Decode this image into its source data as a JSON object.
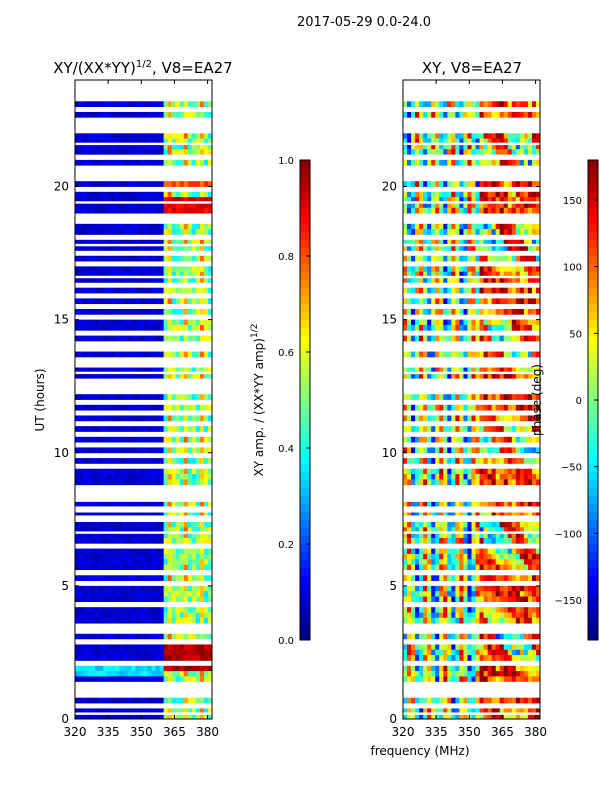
{
  "figure": {
    "suptitle": "2017-05-29 0.0-24.0",
    "shared_xlabel": "frequency (MHz)"
  },
  "chart_data": [
    {
      "type": "heatmap",
      "title": "XY/(XX*YY)",
      "title_exponent": "1/2",
      "title_suffix": ", V8=EA27",
      "xlabel": "",
      "ylabel": "UT (hours)",
      "xlim": [
        320,
        382
      ],
      "ylim": [
        0,
        24
      ],
      "xticks": [
        320,
        335,
        350,
        365,
        380
      ],
      "yticks": [
        0,
        5,
        10,
        15,
        20
      ],
      "colormap": "jet",
      "colorbar": {
        "label": "XY amp. / (XX*YY amp)",
        "label_exponent": "1/2",
        "range": [
          0.0,
          1.0
        ],
        "ticks": [
          "0.0",
          "0.2",
          "0.4",
          "0.6",
          "0.8",
          "1.0"
        ]
      },
      "features": {
        "low_band_value": 0.05,
        "high_band_start_mhz": 361,
        "high_band_value": 0.35,
        "bright_spots": [
          {
            "t_start": 1.7,
            "t_end": 2.8,
            "value": 0.9
          },
          {
            "t_start": 19.1,
            "t_end": 19.6,
            "value": 0.85
          },
          {
            "t_start": 20.1,
            "t_end": 20.6,
            "value": 0.75
          }
        ]
      }
    },
    {
      "type": "heatmap",
      "title": "XY, V8=EA27",
      "xlabel": "",
      "ylabel": "",
      "xlim": [
        320,
        382
      ],
      "ylim": [
        0,
        24
      ],
      "xticks": [
        320,
        335,
        350,
        365,
        380
      ],
      "yticks": [
        0,
        5,
        10,
        15,
        20
      ],
      "colormap": "jet",
      "colorbar": {
        "label": "phase (deg)",
        "range": [
          -180,
          180
        ],
        "ticks": [
          "150",
          "100",
          "50",
          "0",
          "−50",
          "−100",
          "−150"
        ]
      },
      "features": {
        "value_range": [
          -180,
          180
        ],
        "description": "noisy phase, strong red/yellow structure above 355 MHz"
      }
    }
  ],
  "data_gaps_hours": [
    0.2,
    0.45,
    0.9,
    1.1,
    1.35,
    2.05,
    2.95,
    3.3,
    3.45,
    4.35,
    5.1,
    5.45,
    5.55,
    6.5,
    7.0,
    7.5,
    7.6,
    7.8,
    7.9,
    8.2,
    8.35,
    8.5,
    8.7,
    9.5,
    9.9,
    10.3,
    10.65,
    11.05,
    11.5,
    11.9,
    12.25,
    12.45,
    12.65,
    13.0,
    13.35,
    13.5,
    13.85,
    14.1,
    14.5,
    15.1,
    15.5,
    15.85,
    16.25,
    16.6,
    17.1,
    17.45,
    17.8,
    18.05,
    18.65,
    18.85,
    19.4,
    19.9,
    20.25,
    20.45,
    20.7,
    21.15,
    21.6,
    22.05,
    22.35,
    22.45,
    22.9,
    23.3,
    23.55,
    23.7,
    23.9
  ]
}
